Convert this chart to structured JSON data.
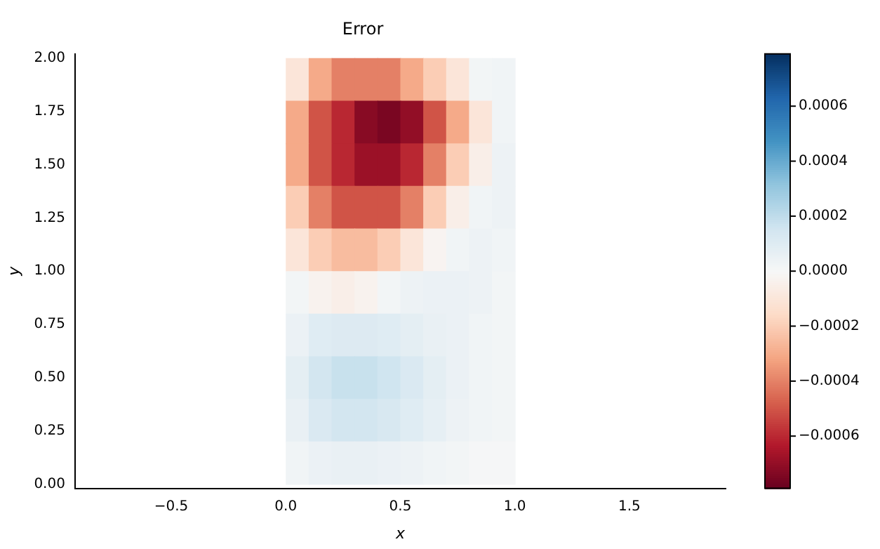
{
  "chart_data": {
    "type": "heatmap",
    "title": "Error",
    "xlabel": "x",
    "ylabel": "y",
    "x": [
      0.05,
      0.15,
      0.25,
      0.35,
      0.45,
      0.55,
      0.65,
      0.75,
      0.85,
      0.95
    ],
    "y": [
      1.9,
      1.7,
      1.5,
      1.3,
      1.1,
      0.9,
      0.7,
      0.5,
      0.3,
      0.1
    ],
    "cells": [
      [
        -0.0001,
        -0.0003,
        -0.0004,
        -0.0004,
        -0.0004,
        -0.0003,
        -0.0002,
        -0.0001,
        2e-05,
        3e-05
      ],
      [
        -0.0003,
        -0.0005,
        -0.0006,
        -0.00072,
        -0.00075,
        -0.0007,
        -0.0005,
        -0.0003,
        -0.0001,
        3e-05
      ],
      [
        -0.0003,
        -0.0005,
        -0.0006,
        -0.00068,
        -0.00068,
        -0.0006,
        -0.0004,
        -0.0002,
        -5e-05,
        4e-05
      ],
      [
        -0.0002,
        -0.0004,
        -0.0005,
        -0.0005,
        -0.0005,
        -0.0004,
        -0.0002,
        -5e-05,
        3e-05,
        4e-05
      ],
      [
        -0.0001,
        -0.0002,
        -0.00025,
        -0.00025,
        -0.0002,
        -0.0001,
        -2e-05,
        3e-05,
        4e-05,
        3e-05
      ],
      [
        2e-05,
        -3e-05,
        -5e-05,
        -3e-05,
        2e-05,
        4e-05,
        5e-05,
        5e-05,
        4e-05,
        2e-05
      ],
      [
        5e-05,
        0.0001,
        0.00011,
        0.00011,
        0.0001,
        8e-05,
        6e-05,
        5e-05,
        3e-05,
        2e-05
      ],
      [
        8e-05,
        0.00015,
        0.00018,
        0.00018,
        0.00016,
        0.00012,
        8e-05,
        5e-05,
        3e-05,
        2e-05
      ],
      [
        6e-05,
        0.00012,
        0.00015,
        0.00015,
        0.00013,
        0.0001,
        7e-05,
        4e-05,
        3e-05,
        2e-05
      ],
      [
        3e-05,
        5e-05,
        6e-05,
        6e-05,
        5e-05,
        4e-05,
        3e-05,
        2e-05,
        1e-05,
        1e-05
      ]
    ],
    "xlim": [
      -0.92,
      1.92
    ],
    "xticks": [
      {
        "value": -0.5,
        "label": "−0.5"
      },
      {
        "value": 0,
        "label": "0.0"
      },
      0.5,
      {
        "value": 1,
        "label": "1.0"
      },
      1.5
    ],
    "ylim": [
      -0.02,
      2.02
    ],
    "yticks": [
      {
        "value": 0,
        "label": "0.00"
      },
      0.25,
      {
        "value": 0.5,
        "label": "0.50"
      },
      0.75,
      {
        "value": 1,
        "label": "1.00"
      },
      1.25,
      {
        "value": 1.5,
        "label": "1.50"
      },
      1.75,
      {
        "value": 2,
        "label": "2.00"
      }
    ],
    "clim": [
      -0.00079,
      0.00079
    ],
    "cticks": [
      {
        "value": -0.0006,
        "label": "−0.0006"
      },
      {
        "value": -0.0004,
        "label": "−0.0004"
      },
      {
        "value": -0.0002,
        "label": "−0.0002"
      },
      {
        "value": 0,
        "label": "0.0000"
      },
      0.0002,
      0.0004,
      0.0006
    ],
    "grid": false,
    "legend": false
  }
}
